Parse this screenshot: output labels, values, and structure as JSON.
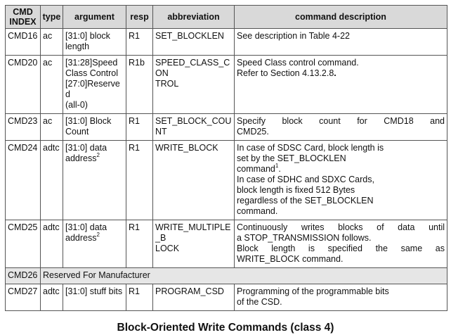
{
  "table": {
    "headers": [
      [
        "CMD",
        "INDEX"
      ],
      [
        "type"
      ],
      [
        "argument"
      ],
      [
        "resp"
      ],
      [
        "abbreviation"
      ],
      [
        "command description"
      ]
    ],
    "rows": [
      {
        "index": "CMD16",
        "type": "ac",
        "argument": [
          [
            "[31:0] block"
          ],
          [
            "length"
          ]
        ],
        "resp": "R1",
        "abbreviation": [
          [
            "SET_BLOCKLEN"
          ]
        ],
        "description": [
          [
            "See description in Table 4-22"
          ]
        ]
      },
      {
        "index": "CMD20",
        "type": "ac",
        "argument": [
          [
            "[31:28]Speed"
          ],
          [
            "Class Control"
          ],
          [
            "[27:0]Reserved"
          ],
          [
            "(all-0)"
          ]
        ],
        "resp": "R1b",
        "abbreviation": [
          [
            "SPEED_CLASS_CON"
          ],
          [
            "TROL"
          ]
        ],
        "description": [
          [
            "Speed Class control command."
          ],
          [
            "Refer to Section 4.13.2.8",
            {
              "bold": "."
            }
          ]
        ]
      },
      {
        "index": "CMD23",
        "type": "ac",
        "argument": [
          [
            "[31:0] Block"
          ],
          [
            "Count"
          ]
        ],
        "resp": "R1",
        "abbreviation": [
          [
            "SET_BLOCK_COUNT"
          ]
        ],
        "description": [
          {
            "justify": "Specify block count for CMD18 and"
          },
          [
            "CMD25."
          ]
        ]
      },
      {
        "index": "CMD24",
        "type": "adtc",
        "argument": [
          [
            "[31:0] data"
          ],
          [
            "address",
            {
              "sup": "2"
            }
          ]
        ],
        "resp": "R1",
        "abbreviation": [
          [
            "WRITE_BLOCK"
          ]
        ],
        "description": [
          [
            "In case of SDSC Card, block length is"
          ],
          [
            "set by the SET_BLOCKLEN"
          ],
          [
            "command",
            {
              "sup": "1"
            },
            "."
          ],
          [
            "In case of SDHC and SDXC Cards,"
          ],
          [
            "block length is fixed 512 Bytes"
          ],
          [
            "regardless of the SET_BLOCKLEN"
          ],
          [
            "command."
          ]
        ]
      },
      {
        "index": "CMD25",
        "type": "adtc",
        "argument": [
          [
            "[31:0] data"
          ],
          [
            "address",
            {
              "sup": "2"
            }
          ]
        ],
        "resp": "R1",
        "abbreviation": [
          [
            "WRITE_MULTIPLE_B"
          ],
          [
            "LOCK"
          ]
        ],
        "description": [
          {
            "justify": "Continuously writes blocks of data until"
          },
          [
            "a STOP_TRANSMISSION follows."
          ],
          {
            "justify": "Block length is specified the same as"
          },
          [
            "WRITE_BLOCK command."
          ]
        ]
      },
      {
        "index": "CMD26",
        "reserved": "Reserved For Manufacturer"
      },
      {
        "index": "CMD27",
        "type": "adtc",
        "argument": [
          [
            "[31:0] stuff bits"
          ]
        ],
        "resp": "R1",
        "abbreviation": [
          [
            "PROGRAM_CSD"
          ]
        ],
        "description": [
          [
            "Programming of the programmable bits"
          ],
          [
            "of the CSD."
          ]
        ]
      }
    ]
  },
  "caption": "Block-Oriented Write Commands (class 4)",
  "colors": {
    "header_bg": "#d9d9d9",
    "reserved_bg": "#e6e6e6",
    "border": "#555555"
  }
}
